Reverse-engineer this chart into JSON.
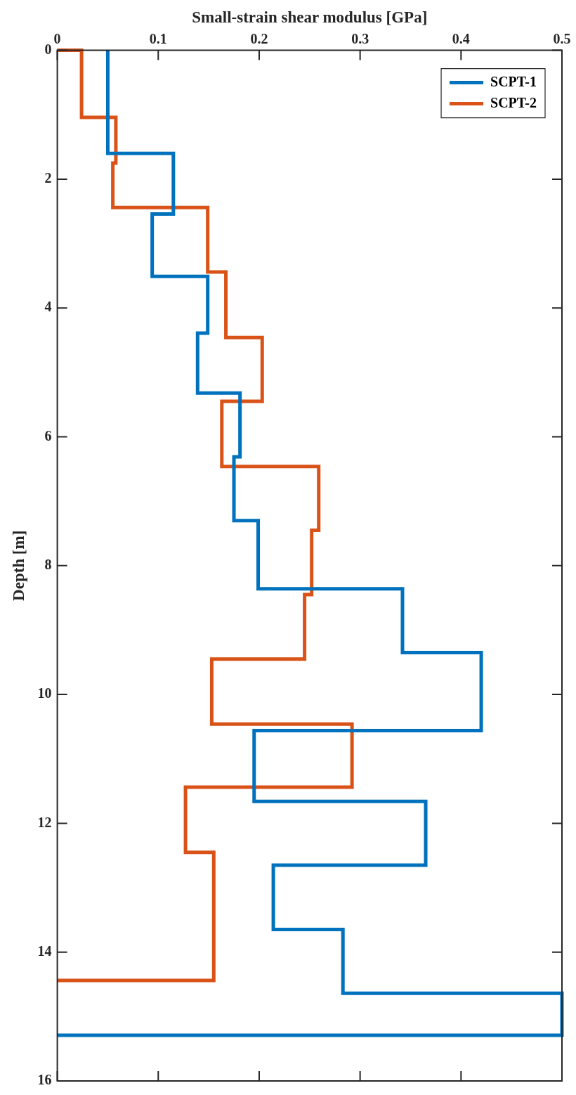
{
  "chart_data": {
    "type": "line",
    "xlabel": "Small-strain shear modulus [GPa]",
    "ylabel": "Depth [m]",
    "xlim": [
      0,
      0.5
    ],
    "xticks": [
      0,
      0.1,
      0.2,
      0.3,
      0.4,
      0.5
    ],
    "ylim": [
      16,
      0
    ],
    "yticks": [
      0,
      2,
      4,
      6,
      8,
      10,
      12,
      14,
      16
    ],
    "grid": false,
    "legend": "top right",
    "marker": "none",
    "line_style": "solid",
    "series": [
      {
        "name": "SCPT-1",
        "color": "#0072bd",
        "x": [
          0.05,
          0.05,
          0.115,
          0.115,
          0.094,
          0.094,
          0.149,
          0.149,
          0.139,
          0.139,
          0.181,
          0.181,
          0.175,
          0.175,
          0.199,
          0.199,
          0.342,
          0.342,
          0.42,
          0.42,
          0.195,
          0.195,
          0.365,
          0.365,
          0.214,
          0.214,
          0.283,
          0.283,
          0.5,
          0.5,
          0
        ],
        "values": [
          0,
          1.6,
          1.6,
          2.54,
          2.54,
          3.51,
          3.51,
          4.39,
          4.39,
          5.32,
          5.32,
          6.31,
          6.31,
          7.3,
          7.3,
          8.36,
          8.36,
          9.35,
          9.35,
          10.56,
          10.56,
          11.66,
          11.66,
          12.65,
          12.65,
          13.65,
          13.65,
          14.64,
          14.64,
          15.29,
          15.29
        ]
      },
      {
        "name": "SCPT-2",
        "color": "#d95319",
        "x": [
          0,
          0.024,
          0.024,
          0.058,
          0.058,
          0.055,
          0.055,
          0.149,
          0.149,
          0.167,
          0.167,
          0.203,
          0.203,
          0.163,
          0.163,
          0.259,
          0.259,
          0.252,
          0.252,
          0.245,
          0.245,
          0.153,
          0.153,
          0.292,
          0.292,
          0.127,
          0.127,
          0.155,
          0.155,
          0
        ],
        "values": [
          0,
          0,
          1.04,
          1.04,
          1.75,
          1.75,
          2.44,
          2.44,
          3.44,
          3.44,
          4.46,
          4.46,
          5.45,
          5.45,
          6.46,
          6.46,
          7.45,
          7.45,
          8.45,
          8.45,
          9.45,
          9.45,
          10.46,
          10.46,
          11.44,
          11.44,
          12.45,
          12.45,
          14.44,
          14.44
        ]
      }
    ]
  }
}
